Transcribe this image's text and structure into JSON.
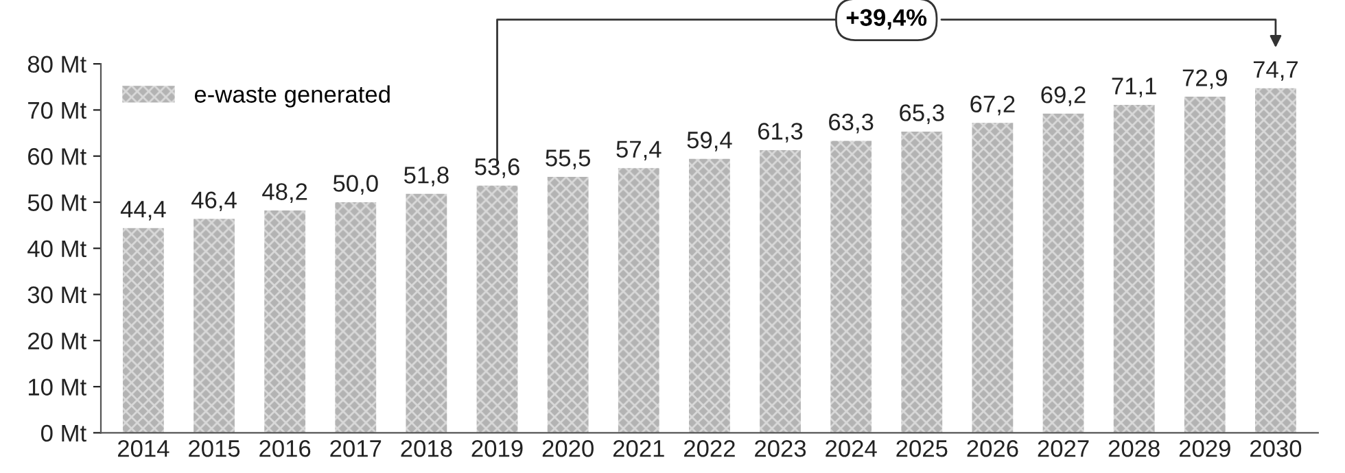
{
  "chart_data": {
    "type": "bar",
    "categories": [
      "2014",
      "2015",
      "2016",
      "2017",
      "2018",
      "2019",
      "2020",
      "2021",
      "2022",
      "2023",
      "2024",
      "2025",
      "2026",
      "2027",
      "2028",
      "2029",
      "2030"
    ],
    "series": [
      {
        "name": "e-waste generated",
        "color": "#b3b3b3",
        "values": [
          44.4,
          46.4,
          48.2,
          50.0,
          51.8,
          53.6,
          55.5,
          57.4,
          59.4,
          61.3,
          63.3,
          65.3,
          67.2,
          69.2,
          71.1,
          72.9,
          74.7
        ],
        "value_labels": [
          "44,4",
          "46,4",
          "48,2",
          "50,0",
          "51,8",
          "53,6",
          "55,5",
          "57,4",
          "59,4",
          "61,3",
          "63,3",
          "65,3",
          "67,2",
          "69,2",
          "71,1",
          "72,9",
          "74,7"
        ]
      }
    ],
    "ylim": [
      0,
      80
    ],
    "yticks": [
      {
        "value": 0,
        "label": "0 Mt"
      },
      {
        "value": 10,
        "label": "10 Mt"
      },
      {
        "value": 20,
        "label": "20 Mt"
      },
      {
        "value": 30,
        "label": "30 Mt"
      },
      {
        "value": 40,
        "label": "40 Mt"
      },
      {
        "value": 50,
        "label": "50 Mt"
      },
      {
        "value": 60,
        "label": "60 Mt"
      },
      {
        "value": 70,
        "label": "70 Mt"
      },
      {
        "value": 80,
        "label": "80 Mt"
      }
    ],
    "annotations": [
      "+39,4%"
    ],
    "legend": "top left",
    "grid": false
  }
}
